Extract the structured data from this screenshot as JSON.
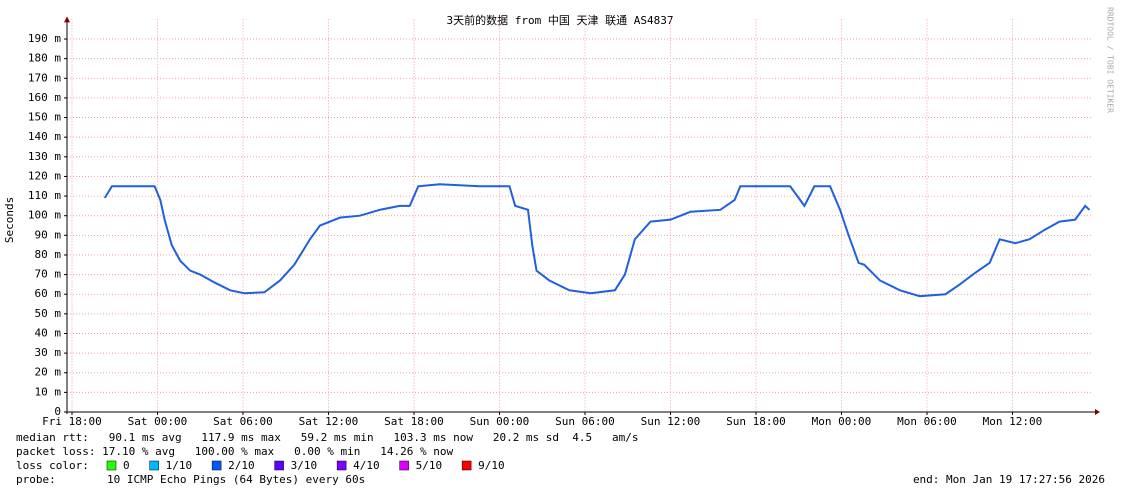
{
  "chart_data": {
    "type": "line",
    "title": "3天前的数据 from  中国 天津 联通 AS4837",
    "y_label": "Seconds",
    "side_note": "RRDTOOL / TOBI OETIKER",
    "x": [
      20.3,
      20.8,
      23.8,
      24.2,
      24.5,
      25.0,
      25.6,
      26.3,
      27.0,
      28.0,
      29.1,
      30.1,
      31.5,
      32.6,
      33.6,
      34.7,
      35.4,
      36.8,
      38.2,
      39.6,
      41.0,
      41.7,
      42.3,
      43.8,
      46.6,
      48.7,
      49.1,
      50.0,
      50.3,
      50.6,
      51.5,
      52.9,
      54.4,
      56.1,
      56.8,
      57.5,
      58.6,
      60.0,
      61.4,
      63.5,
      64.5,
      64.9,
      68.4,
      69.1,
      69.4,
      70.1,
      71.2,
      71.9,
      72.5,
      73.2,
      73.6,
      74.7,
      76.1,
      77.5,
      79.3,
      80.3,
      81.4,
      82.4,
      83.1,
      84.2,
      85.2,
      86.3,
      87.3,
      88.4,
      89.1,
      89.4
    ],
    "series": [
      {
        "color": "#1f5fe0",
        "values": [
          0.109,
          0.115,
          0.115,
          0.108,
          0.098,
          0.085,
          0.077,
          0.072,
          0.07,
          0.066,
          0.062,
          0.0605,
          0.061,
          0.067,
          0.075,
          0.088,
          0.095,
          0.099,
          0.1,
          0.103,
          0.105,
          0.105,
          0.115,
          0.116,
          0.115,
          0.115,
          0.105,
          0.103,
          0.085,
          0.072,
          0.067,
          0.062,
          0.0605,
          0.062,
          0.07,
          0.088,
          0.097,
          0.098,
          0.102,
          0.103,
          0.108,
          0.115,
          0.115,
          0.108,
          0.105,
          0.115,
          0.115,
          0.103,
          0.09,
          0.076,
          0.075,
          0.067,
          0.062,
          0.059,
          0.06,
          0.065,
          0.071,
          0.076,
          0.088,
          0.086,
          0.088,
          0.093,
          0.097,
          0.098,
          0.105,
          0.103
        ]
      }
    ],
    "xlim": [
      17.65,
      89.65
    ],
    "xticks": [
      {
        "value": 18,
        "label": "Fri 18:00"
      },
      {
        "value": 24,
        "label": "Sat 00:00"
      },
      {
        "value": 30,
        "label": "Sat 06:00"
      },
      {
        "value": 36,
        "label": "Sat 12:00"
      },
      {
        "value": 42,
        "label": "Sat 18:00"
      },
      {
        "value": 48,
        "label": "Sun 00:00"
      },
      {
        "value": 54,
        "label": "Sun 06:00"
      },
      {
        "value": 60,
        "label": "Sun 12:00"
      },
      {
        "value": 66,
        "label": "Sun 18:00"
      },
      {
        "value": 72,
        "label": "Mon 00:00"
      },
      {
        "value": 78,
        "label": "Mon 06:00"
      },
      {
        "value": 84,
        "label": "Mon 12:00"
      }
    ],
    "ylim": [
      0,
      0.2
    ],
    "yticks": [
      0,
      {
        "value": 0.01,
        "label": "10 m"
      },
      {
        "value": 0.02,
        "label": "20 m"
      },
      {
        "value": 0.03,
        "label": "30 m"
      },
      {
        "value": 0.04,
        "label": "40 m"
      },
      {
        "value": 0.05,
        "label": "50 m"
      },
      {
        "value": 0.06,
        "label": "60 m"
      },
      {
        "value": 0.07,
        "label": "70 m"
      },
      {
        "value": 0.08,
        "label": "80 m"
      },
      {
        "value": 0.09,
        "label": "90 m"
      },
      {
        "value": 0.1,
        "label": "100 m"
      },
      {
        "value": 0.11,
        "label": "110 m"
      },
      {
        "value": 0.12,
        "label": "120 m"
      },
      {
        "value": 0.13,
        "label": "130 m"
      },
      {
        "value": 0.14,
        "label": "140 m"
      },
      {
        "value": 0.15,
        "label": "150 m"
      },
      {
        "value": 0.16,
        "label": "160 m"
      },
      {
        "value": 0.17,
        "label": "170 m"
      },
      {
        "value": 0.18,
        "label": "180 m"
      },
      {
        "value": 0.19,
        "label": "190 m"
      }
    ],
    "grid": true,
    "stats_lines": [
      "median rtt:   90.1 ms avg   117.9 ms max   59.2 ms min   103.3 ms now   20.2 ms sd  4.5   am/s",
      "packet loss: 17.10 % avg   100.00 % max   0.00 % min   14.26 % now"
    ],
    "loss_label": "loss color:",
    "loss_colors": [
      {
        "label": "0",
        "color": "#26ff00"
      },
      {
        "label": "1/10",
        "color": "#00b8ff"
      },
      {
        "label": "2/10",
        "color": "#0059ff"
      },
      {
        "label": "3/10",
        "color": "#5e00ff"
      },
      {
        "label": "4/10",
        "color": "#7e00ff"
      },
      {
        "label": "5/10",
        "color": "#dd00ff"
      },
      {
        "label": "9/10",
        "color": "#ff0000"
      }
    ],
    "probe_label": "probe:",
    "probe": "10 ICMP Echo Pings (64 Bytes) every 60s",
    "end": "end: Mon Jan 19 17:27:56 2026"
  }
}
